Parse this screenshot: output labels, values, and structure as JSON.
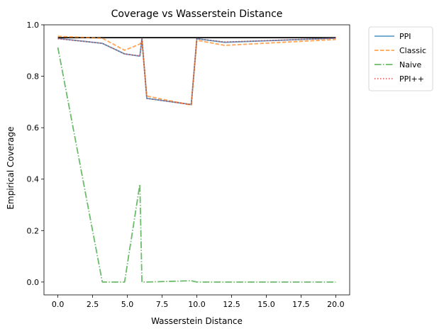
{
  "chart_data": {
    "type": "line",
    "title": "Coverage vs Wasserstein Distance",
    "xlabel": "Wasserstein Distance",
    "ylabel": "Empirical Coverage",
    "xlim": [
      -1.0,
      21.0
    ],
    "ylim": [
      -0.05,
      1.0
    ],
    "xticks": [
      0.0,
      2.5,
      5.0,
      7.5,
      10.0,
      12.5,
      15.0,
      17.5,
      20.0
    ],
    "xtick_labels": [
      "0.0",
      "2.5",
      "5.0",
      "7.5",
      "10.0",
      "12.5",
      "15.0",
      "17.5",
      "20.0"
    ],
    "yticks": [
      0.0,
      0.2,
      0.4,
      0.6,
      0.8,
      1.0
    ],
    "ytick_labels": [
      "0.0",
      "0.2",
      "0.4",
      "0.6",
      "0.8",
      "1.0"
    ],
    "grid": false,
    "legend_placement": "outside-top-right",
    "reference_line": {
      "y": 0.95,
      "color": "#000000"
    },
    "x": [
      0.0,
      3.2,
      4.8,
      5.9,
      6.05,
      6.4,
      9.6,
      10.0,
      12.0,
      20.0
    ],
    "series": [
      {
        "name": "PPI",
        "color": "#1f77b4",
        "dash": "solid",
        "values": [
          0.947,
          0.928,
          0.887,
          0.878,
          0.946,
          0.714,
          0.69,
          0.946,
          0.932,
          0.948
        ]
      },
      {
        "name": "Classic",
        "color": "#ff7f0e",
        "dash": "dashed",
        "values": [
          0.955,
          0.948,
          0.901,
          0.925,
          0.937,
          0.723,
          0.688,
          0.94,
          0.92,
          0.943
        ]
      },
      {
        "name": "Naive",
        "color": "#2ca02c",
        "dash": "dashdot",
        "values": [
          0.912,
          0.0,
          0.0,
          0.38,
          0.0,
          0.0,
          0.005,
          0.0,
          0.0,
          0.0
        ]
      },
      {
        "name": "PPI++",
        "color": "#d62728",
        "dash": "dotted",
        "values": [
          0.946,
          0.928,
          0.887,
          0.879,
          0.946,
          0.714,
          0.69,
          0.946,
          0.933,
          0.948
        ]
      }
    ]
  }
}
